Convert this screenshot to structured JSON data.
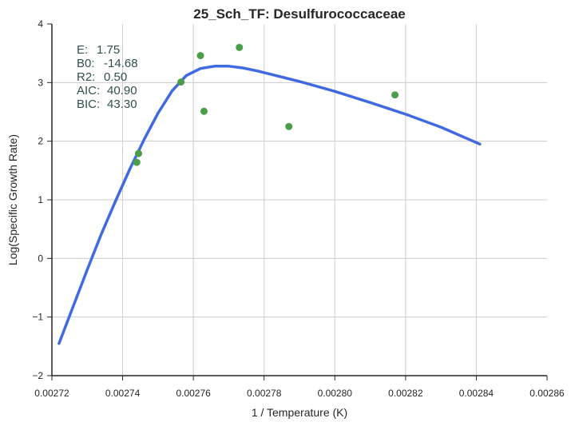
{
  "chart_data": {
    "type": "scatter",
    "title": "25_Sch_TF: Desulfurococcaceae",
    "xlabel": "1 / Temperature (K)",
    "ylabel": "Log(Specific Growth Rate)",
    "xlim": [
      0.00272,
      0.00286
    ],
    "ylim": [
      -2,
      4
    ],
    "xticks": [
      "0.00272",
      "0.00274",
      "0.00276",
      "0.00278",
      "0.00280",
      "0.00282",
      "0.00284",
      "0.00286"
    ],
    "yticks": [
      "−2",
      "−1",
      "0",
      "1",
      "2",
      "3",
      "4"
    ],
    "grid": true,
    "colors": {
      "fit": "#4169e1",
      "points": "#4a9e4a",
      "annotation": "#2f4f4f",
      "grid": "#cccccc",
      "axis": "#262626"
    },
    "annotations": [
      {
        "label": "E:",
        "value": "1.75"
      },
      {
        "label": "B0:",
        "value": "-14.68"
      },
      {
        "label": "R2:",
        "value": "0.50"
      },
      {
        "label": "AIC:",
        "value": "40.90"
      },
      {
        "label": "BIC:",
        "value": "43.30"
      }
    ],
    "points": [
      {
        "x": 0.002744,
        "y": 1.64
      },
      {
        "x": 0.0027445,
        "y": 1.79
      },
      {
        "x": 0.0027565,
        "y": 3.01
      },
      {
        "x": 0.002762,
        "y": 3.46
      },
      {
        "x": 0.002763,
        "y": 2.51
      },
      {
        "x": 0.002773,
        "y": 3.6
      },
      {
        "x": 0.002787,
        "y": 2.25
      },
      {
        "x": 0.002817,
        "y": 2.79
      }
    ],
    "fit_line": {
      "x": [
        0.002722,
        0.002726,
        0.00273,
        0.002734,
        0.002738,
        0.002742,
        0.002746,
        0.00275,
        0.002754,
        0.002758,
        0.002762,
        0.002766,
        0.00277,
        0.002774,
        0.002778,
        0.002782,
        0.002786,
        0.00279,
        0.0028,
        0.00281,
        0.00282,
        0.00283,
        0.002841
      ],
      "y": [
        -1.45,
        -0.82,
        -0.19,
        0.42,
        0.98,
        1.52,
        2.02,
        2.48,
        2.86,
        3.12,
        3.24,
        3.28,
        3.28,
        3.25,
        3.2,
        3.14,
        3.08,
        3.02,
        2.85,
        2.66,
        2.46,
        2.24,
        1.95
      ]
    }
  }
}
